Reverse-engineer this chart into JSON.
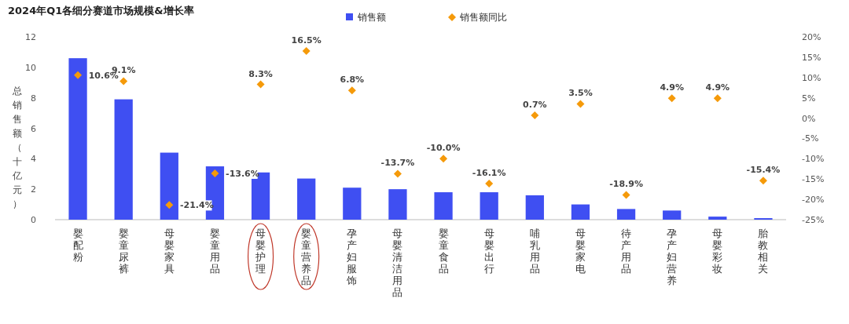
{
  "chart_data": {
    "type": "bar",
    "title": "2024年Q1各细分赛道市场规模&增长率",
    "ylabel": "总销售额（十亿元）",
    "categories": [
      "婴配粉",
      "婴童尿裤",
      "母婴家具",
      "婴童用品",
      "母婴护理",
      "婴童营养品",
      "孕产妇服饰",
      "母婴清洁用品",
      "婴童食品",
      "母婴出行",
      "哺乳用品",
      "母婴家电",
      "待产用品",
      "孕产妇营养",
      "母婴彩妆",
      "胎教相关"
    ],
    "series": [
      {
        "name": "销售额",
        "color": "#3f4ff2",
        "values": [
          10.6,
          7.9,
          4.4,
          3.5,
          3.1,
          2.7,
          2.1,
          2.0,
          1.8,
          1.8,
          1.6,
          1.0,
          0.7,
          0.6,
          0.2,
          0.1
        ]
      },
      {
        "name": "销售额同比",
        "type": "scatter",
        "axis": "y2",
        "marker": "diamond",
        "color": "#f59a0a",
        "values": [
          10.6,
          9.1,
          -21.4,
          -13.6,
          8.3,
          16.5,
          6.8,
          -13.7,
          -10.0,
          -16.1,
          0.7,
          3.5,
          -18.9,
          4.9,
          4.9,
          -15.4
        ],
        "value_labels": [
          "10.6%",
          "9.1%",
          "-21.4%",
          "-13.6%",
          "8.3%",
          "16.5%",
          "6.8%",
          "-13.7%",
          "-10.0%",
          "-16.1%",
          "0.7%",
          "3.5%",
          "-18.9%",
          "4.9%",
          "4.9%",
          "-15.4%"
        ]
      }
    ],
    "ylim": [
      0,
      12
    ],
    "yticks": [
      0,
      2,
      4,
      6,
      8,
      10,
      12
    ],
    "y2lim": [
      -25,
      20
    ],
    "y2ticks": [
      {
        "value": -25,
        "label": "-25%"
      },
      {
        "value": -20,
        "label": "-20%"
      },
      {
        "value": -15,
        "label": "-15%"
      },
      {
        "value": -10,
        "label": "-10%"
      },
      {
        "value": -5,
        "label": "-5%"
      },
      {
        "value": 0,
        "label": "0%"
      },
      {
        "value": 5,
        "label": "5%"
      },
      {
        "value": 10,
        "label": "10%"
      },
      {
        "value": 15,
        "label": "15%"
      },
      {
        "value": 20,
        "label": "20%"
      }
    ],
    "legend": "top",
    "grid": false
  }
}
